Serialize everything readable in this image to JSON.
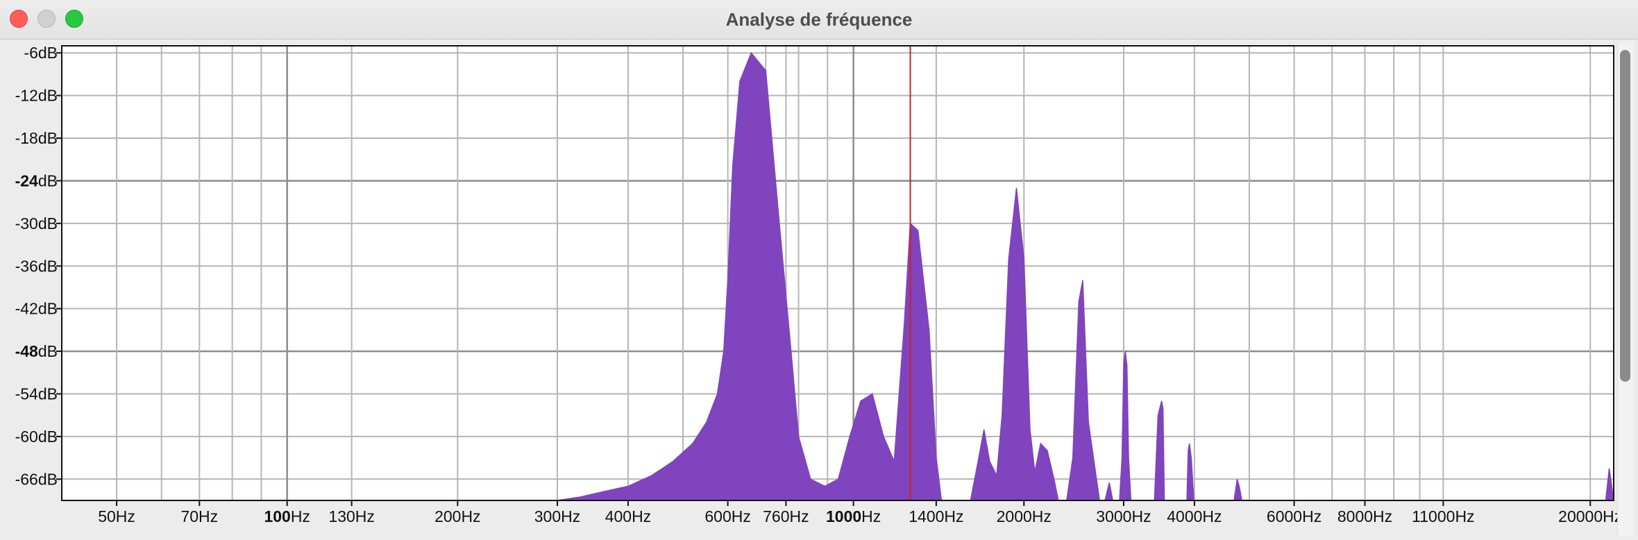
{
  "window": {
    "title": "Analyse de fréquence",
    "buttons": [
      "close",
      "minimize",
      "maximize"
    ]
  },
  "colors": {
    "spectrum": "#7f44be",
    "cursor": "#cc2222",
    "grid": "#b5b5b5",
    "grid_major": "#8c8c8c"
  },
  "chart_data": {
    "type": "area",
    "title": "",
    "xlabel": "",
    "ylabel": "",
    "x_scale": "log",
    "xlim": [
      40,
      22000
    ],
    "ylim": [
      -69,
      -5
    ],
    "grid": true,
    "cursor_hz": 1260,
    "x_ticks": [
      {
        "value": 50,
        "num": "50",
        "unit": "Hz",
        "major": false
      },
      {
        "value": 70,
        "num": "70",
        "unit": "Hz",
        "major": false
      },
      {
        "value": 100,
        "num": "100",
        "unit": "Hz",
        "major": true
      },
      {
        "value": 130,
        "num": "130",
        "unit": "Hz",
        "major": false
      },
      {
        "value": 200,
        "num": "200",
        "unit": "Hz",
        "major": false
      },
      {
        "value": 300,
        "num": "300",
        "unit": "Hz",
        "major": false
      },
      {
        "value": 400,
        "num": "400",
        "unit": "Hz",
        "major": false
      },
      {
        "value": 600,
        "num": "600",
        "unit": "Hz",
        "major": false
      },
      {
        "value": 760,
        "num": "760",
        "unit": "Hz",
        "major": false
      },
      {
        "value": 1000,
        "num": "1000",
        "unit": "Hz",
        "major": true
      },
      {
        "value": 1400,
        "num": "1400",
        "unit": "Hz",
        "major": false
      },
      {
        "value": 2000,
        "num": "2000",
        "unit": "Hz",
        "major": false
      },
      {
        "value": 3000,
        "num": "3000",
        "unit": "Hz",
        "major": false
      },
      {
        "value": 4000,
        "num": "4000",
        "unit": "Hz",
        "major": false
      },
      {
        "value": 6000,
        "num": "6000",
        "unit": "Hz",
        "major": false
      },
      {
        "value": 8000,
        "num": "8000",
        "unit": "Hz",
        "major": false
      },
      {
        "value": 11000,
        "num": "11000",
        "unit": "Hz",
        "major": false
      },
      {
        "value": 20000,
        "num": "20000",
        "unit": "Hz",
        "major": false
      }
    ],
    "x_minor_grid": [
      60,
      80,
      90,
      500,
      700,
      800,
      900,
      5000,
      7000,
      9000,
      10000
    ],
    "y_ticks": [
      {
        "value": -6,
        "num": "-6",
        "unit": "dB",
        "major": false
      },
      {
        "value": -12,
        "num": "-12",
        "unit": "dB",
        "major": false
      },
      {
        "value": -18,
        "num": "-18",
        "unit": "dB",
        "major": false
      },
      {
        "value": -24,
        "num": "-24",
        "unit": "dB",
        "major": true
      },
      {
        "value": -30,
        "num": "-30",
        "unit": "dB",
        "major": false
      },
      {
        "value": -36,
        "num": "-36",
        "unit": "dB",
        "major": false
      },
      {
        "value": -42,
        "num": "-42",
        "unit": "dB",
        "major": false
      },
      {
        "value": -48,
        "num": "-48",
        "unit": "dB",
        "major": true
      },
      {
        "value": -54,
        "num": "-54",
        "unit": "dB",
        "major": false
      },
      {
        "value": -60,
        "num": "-60",
        "unit": "dB",
        "major": false
      },
      {
        "value": -66,
        "num": "-66",
        "unit": "dB",
        "major": false
      }
    ],
    "series": [
      {
        "x": [
          40,
          170,
          200,
          240,
          280,
          300,
          330,
          360,
          400,
          440,
          480,
          520,
          550,
          575,
          590,
          600,
          612,
          630,
          660,
          700,
          740,
          780,
          800,
          840,
          890,
          940,
          985,
          1030,
          1080,
          1130,
          1180,
          1230,
          1260,
          1300,
          1360,
          1400,
          1430,
          1470,
          1520,
          1560,
          1610,
          1660,
          1700,
          1740,
          1790,
          1830,
          1880,
          1940,
          2000,
          2050,
          2090,
          2140,
          2200,
          2260,
          2300,
          2340,
          2380,
          2440,
          2500,
          2540,
          2600,
          2720,
          2780,
          2830,
          2870,
          2950,
          2980,
          3000,
          3020,
          3040,
          3060,
          3090,
          3120,
          3150,
          3300,
          3400,
          3450,
          3500,
          3520,
          3540,
          3580,
          3620,
          3700,
          3790,
          3880,
          3900,
          3920,
          3950,
          3990,
          4050,
          4500,
          4700,
          4760,
          4800,
          4850,
          4900,
          8000,
          20000,
          21300,
          21600,
          22000
        ],
        "y": [
          -69,
          -69,
          -69,
          -69,
          -69,
          -69,
          -68.5,
          -67.8,
          -67,
          -65.5,
          -63.5,
          -61,
          -58,
          -54,
          -48,
          -38,
          -22,
          -10,
          -6,
          -8.5,
          -30,
          -50,
          -60,
          -66,
          -67,
          -66,
          -60,
          -55,
          -54,
          -60,
          -63.5,
          -44,
          -30,
          -31,
          -45,
          -63,
          -69,
          -69,
          -69,
          -69,
          -69,
          -63.5,
          -59,
          -63.5,
          -65.5,
          -57,
          -35,
          -25,
          -35,
          -59,
          -65,
          -61,
          -62,
          -66,
          -69,
          -69,
          -69,
          -63,
          -41,
          -38,
          -58,
          -69,
          -69,
          -66.5,
          -69,
          -69,
          -63,
          -50,
          -48,
          -50,
          -63,
          -69,
          -69,
          -69,
          -69,
          -69,
          -57,
          -55,
          -56,
          -69,
          -69,
          -69,
          -69,
          -69,
          -69,
          -62,
          -61,
          -63,
          -69,
          -69,
          -69,
          -69,
          -66,
          -67,
          -69,
          -69,
          -69,
          -69,
          -69,
          -64.5,
          -69
        ]
      }
    ]
  }
}
